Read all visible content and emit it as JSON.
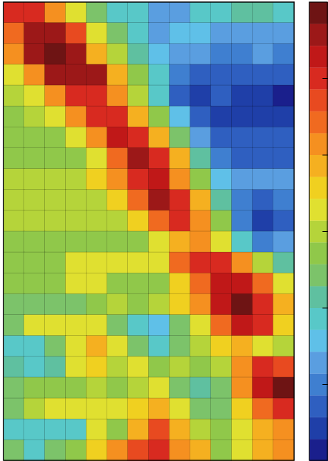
{
  "chart_data": {
    "type": "contour",
    "levels": [
      0,
      1,
      2,
      3,
      4,
      5,
      6,
      7,
      8,
      9,
      10,
      11,
      12,
      13,
      14,
      15,
      16,
      17,
      18,
      19,
      20
    ],
    "colors": [
      "#1a1f8c",
      "#1f3fa8",
      "#2f5fc0",
      "#3f7fd0",
      "#5a9ee0",
      "#5fc0e8",
      "#58c8c8",
      "#5fc0a0",
      "#7cc36a",
      "#90c84a",
      "#b5d43a",
      "#e0e030",
      "#f0d020",
      "#f5b020",
      "#f59020",
      "#f06a20",
      "#e84a20",
      "#d82a20",
      "#c01818",
      "#9c1818",
      "#6e1414"
    ],
    "zlim": [
      0,
      21
    ],
    "zticks": [
      3.5,
      7,
      10.5,
      14,
      17.5
    ],
    "z": [
      [
        17,
        17,
        14,
        11,
        8,
        6,
        6,
        4,
        4,
        6,
        6,
        7,
        7,
        6
      ],
      [
        15,
        19,
        19,
        16,
        11,
        8,
        6,
        4,
        5,
        5,
        4,
        4,
        4,
        4
      ],
      [
        14,
        19,
        20,
        19,
        13,
        10,
        7,
        5,
        4,
        4,
        3,
        3,
        4,
        3
      ],
      [
        11,
        14,
        19,
        19,
        19,
        13,
        9,
        6,
        3,
        2,
        2,
        2,
        2,
        2
      ],
      [
        10,
        11,
        14,
        17,
        17,
        14,
        10,
        6,
        2,
        1,
        2,
        1,
        1,
        0
      ],
      [
        9,
        10,
        11,
        14,
        17,
        17,
        13,
        9,
        5,
        2,
        1,
        1,
        1,
        1
      ],
      [
        9,
        9,
        9,
        11,
        14,
        18,
        17,
        13,
        8,
        4,
        2,
        2,
        2,
        2
      ],
      [
        9,
        9,
        9,
        9,
        11,
        15,
        19,
        17,
        13,
        7,
        3,
        2,
        2,
        2
      ],
      [
        10,
        10,
        10,
        10,
        12,
        14,
        17,
        18,
        14,
        9,
        5,
        4,
        4,
        4
      ],
      [
        10,
        10,
        10,
        10,
        10,
        12,
        15,
        19,
        17,
        13,
        7,
        3,
        2,
        3
      ],
      [
        10,
        10,
        10,
        10,
        10,
        10,
        12,
        15,
        17,
        14,
        9,
        3,
        1,
        2
      ],
      [
        9,
        9,
        9,
        9,
        9,
        9,
        9,
        11,
        13,
        14,
        11,
        6,
        3,
        4
      ],
      [
        9,
        9,
        9,
        11,
        11,
        11,
        11,
        11,
        15,
        17,
        17,
        14,
        10,
        7
      ],
      [
        9,
        9,
        9,
        11,
        11,
        9,
        9,
        9,
        12,
        15,
        18,
        18,
        15,
        11
      ],
      [
        8,
        8,
        8,
        8,
        9,
        10,
        9,
        10,
        12,
        14,
        18,
        20,
        17,
        13
      ],
      [
        8,
        11,
        11,
        11,
        11,
        8,
        6,
        5,
        8,
        11,
        15,
        18,
        17,
        12
      ],
      [
        6,
        6,
        8,
        11,
        13,
        11,
        8,
        6,
        8,
        10,
        12,
        13,
        11,
        10
      ],
      [
        7,
        6,
        7,
        11,
        12,
        10,
        11,
        9,
        10,
        9,
        10,
        14,
        17,
        16
      ],
      [
        8,
        9,
        9,
        9,
        10,
        9,
        10,
        11,
        8,
        7,
        8,
        14,
        18,
        20
      ],
      [
        8,
        10,
        11,
        11,
        11,
        11,
        12,
        13,
        11,
        8,
        8,
        12,
        15,
        17
      ],
      [
        6,
        6,
        6,
        6,
        11,
        9,
        13,
        16,
        13,
        10,
        9,
        11,
        13,
        14
      ],
      [
        8,
        6,
        8,
        9,
        12,
        14,
        16,
        17,
        14,
        13,
        9,
        11,
        13,
        14
      ]
    ]
  }
}
